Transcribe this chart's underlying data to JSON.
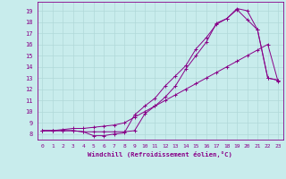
{
  "xlabel": "Windchill (Refroidissement éolien,°C)",
  "bg_color": "#c8ecec",
  "grid_color": "#b0d8d8",
  "line_color": "#880088",
  "xlim": [
    -0.5,
    23.5
  ],
  "ylim": [
    7.5,
    19.8
  ],
  "xticks": [
    0,
    1,
    2,
    3,
    4,
    5,
    6,
    7,
    8,
    9,
    10,
    11,
    12,
    13,
    14,
    15,
    16,
    17,
    18,
    19,
    20,
    21,
    22,
    23
  ],
  "yticks": [
    8,
    9,
    10,
    11,
    12,
    13,
    14,
    15,
    16,
    17,
    18,
    19
  ],
  "line1_x": [
    0,
    1,
    2,
    3,
    4,
    5,
    6,
    7,
    8,
    9,
    10,
    11,
    12,
    13,
    14,
    15,
    16,
    17,
    18,
    19,
    20,
    21,
    22,
    23
  ],
  "line1_y": [
    8.3,
    8.3,
    8.3,
    8.3,
    8.2,
    7.85,
    7.85,
    8.0,
    8.1,
    9.7,
    10.5,
    11.2,
    12.3,
    13.2,
    14.1,
    15.6,
    16.6,
    17.8,
    18.3,
    19.2,
    19.0,
    17.3,
    13.0,
    12.8
  ],
  "line2_x": [
    0,
    1,
    2,
    3,
    4,
    5,
    6,
    7,
    8,
    9,
    10,
    11,
    12,
    13,
    14,
    15,
    16,
    17,
    18,
    19,
    20,
    21,
    22,
    23
  ],
  "line2_y": [
    8.3,
    8.3,
    8.3,
    8.3,
    8.2,
    8.2,
    8.2,
    8.2,
    8.2,
    8.3,
    9.8,
    10.5,
    11.3,
    12.3,
    13.8,
    15.0,
    16.2,
    17.9,
    18.3,
    19.1,
    18.2,
    17.3,
    13.0,
    12.8
  ],
  "line3_x": [
    0,
    1,
    2,
    3,
    4,
    5,
    6,
    7,
    8,
    9,
    10,
    11,
    12,
    13,
    14,
    15,
    16,
    17,
    18,
    19,
    20,
    21,
    22,
    23
  ],
  "line3_y": [
    8.3,
    8.3,
    8.4,
    8.5,
    8.5,
    8.6,
    8.7,
    8.8,
    9.0,
    9.5,
    10.0,
    10.5,
    11.0,
    11.5,
    12.0,
    12.5,
    13.0,
    13.5,
    14.0,
    14.5,
    15.0,
    15.5,
    16.0,
    12.7
  ]
}
